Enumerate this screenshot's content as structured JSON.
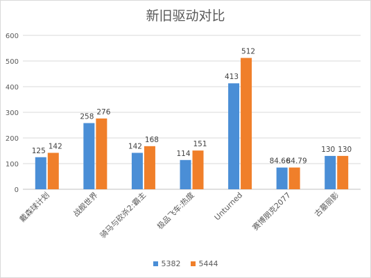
{
  "chart_data": {
    "type": "bar",
    "title": "新旧驱动对比",
    "xlabel": "",
    "ylabel": "",
    "ylim": [
      0,
      600
    ],
    "yticks": [
      "0",
      "100",
      "200",
      "300",
      "400",
      "500",
      "600"
    ],
    "grid": true,
    "legend_position": "bottom",
    "categories": [
      "戴森球计划",
      "战舰世界",
      "骑马与砍杀2:霸主",
      "极品飞车:热度",
      "Unturned",
      "赛博朋克2077",
      "古墓丽影"
    ],
    "series": [
      {
        "name": "5382",
        "color": "#4a8ed6",
        "values": [
          125,
          258,
          142,
          114,
          413,
          84.66,
          130
        ],
        "labels": [
          "125",
          "258",
          "142",
          "114",
          "413",
          "84.66",
          "130"
        ]
      },
      {
        "name": "5444",
        "color": "#f07f2a",
        "values": [
          142,
          276,
          168,
          151,
          512,
          84.79,
          130
        ],
        "labels": [
          "142",
          "276",
          "168",
          "151",
          "512",
          "84.79",
          "130"
        ]
      }
    ]
  }
}
